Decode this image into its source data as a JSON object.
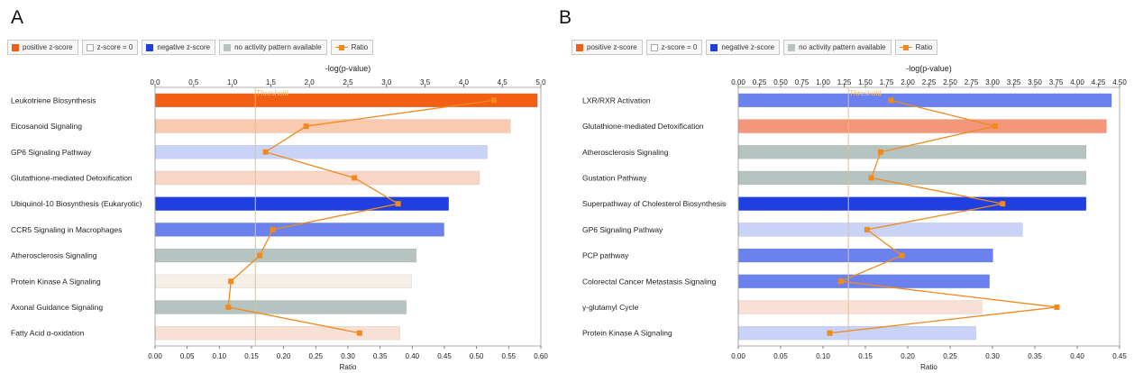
{
  "colors": {
    "positive": "#f25f14",
    "positive_light": "#f9c9b0",
    "zero": "#f5efe8",
    "negative": "#1f3fe0",
    "negative_medium": "#6b82ee",
    "negative_light": "#c9d3f8",
    "no_pattern": "#b5c4c1",
    "ratio": "#f08a1c",
    "threshold": "#f0c070"
  },
  "legend": [
    {
      "label": "positive z-score",
      "color": "#f25f14",
      "kind": "swatch",
      "icon": "square"
    },
    {
      "label": "z-score = 0",
      "color": "#ffffff",
      "kind": "swatch",
      "icon": "square-outline"
    },
    {
      "label": "negative z-score",
      "color": "#1f3fe0",
      "kind": "swatch",
      "icon": "square"
    },
    {
      "label": "no activity pattern available",
      "color": "#b5c4c1",
      "kind": "swatch",
      "icon": "square"
    },
    {
      "label": "Ratio",
      "color": "#f08a1c",
      "kind": "ratio",
      "icon": "line-marker"
    }
  ],
  "chart_data": [
    {
      "panel_label": "A",
      "type": "bar",
      "orientation": "horizontal",
      "top_axis_label": "-log(p-value)",
      "bottom_axis_label": "Ratio",
      "top_ticks": [
        "0.0",
        "0.5",
        "1.0",
        "1.5",
        "2.0",
        "2.5",
        "3.0",
        "3.5",
        "4.0",
        "4.5",
        "5.0"
      ],
      "top_range": [
        0,
        5
      ],
      "bottom_ticks": [
        "0.00",
        "0.05",
        "0.10",
        "0.15",
        "0.20",
        "0.25",
        "0.30",
        "0.35",
        "0.40",
        "0.45",
        "0.50",
        "0.55",
        "0.60"
      ],
      "bottom_range": [
        0,
        0.6
      ],
      "threshold_label": "Threshold",
      "threshold_value": 1.3,
      "categories": [
        "Leukotriene Biosynthesis",
        "Eicosanoid Signaling",
        "GP6 Signaling Pathway",
        "Glutathione-mediated Detoxification",
        "Ubiquinol-10 Biosynthesis (Eukaryotic)",
        "CCR5 Signaling in Macrophages",
        "Atherosclerosis Signaling",
        "Protein Kinase A Signaling",
        "Axonal Guidance Signaling",
        "Fatty Acid α-oxidation"
      ],
      "neg_log_p": [
        4.95,
        4.6,
        4.3,
        4.2,
        3.8,
        3.74,
        3.38,
        3.32,
        3.25,
        3.17
      ],
      "bar_colors": [
        "#f25f14",
        "#f9c9b0",
        "#c9d3f8",
        "#f9d6c6",
        "#1f3fe0",
        "#6b82ee",
        "#b5c4c1",
        "#f5efe8",
        "#b5c4c1",
        "#f9e0d6"
      ],
      "ratio": [
        0.527,
        0.235,
        0.172,
        0.31,
        0.378,
        0.183,
        0.163,
        0.118,
        0.114,
        0.318
      ]
    },
    {
      "panel_label": "B",
      "type": "bar",
      "orientation": "horizontal",
      "top_axis_label": "-log(p-value)",
      "bottom_axis_label": "Ratio",
      "top_ticks": [
        "0.00",
        "0.25",
        "0.50",
        "0.75",
        "1.00",
        "1.25",
        "1.50",
        "1.75",
        "2.00",
        "2.25",
        "2.50",
        "2.75",
        "3.00",
        "3.25",
        "3.50",
        "3.75",
        "4.00",
        "4.25",
        "4.50"
      ],
      "top_range": [
        0,
        4.5
      ],
      "bottom_ticks": [
        "0.00",
        "0.05",
        "0.10",
        "0.15",
        "0.20",
        "0.25",
        "0.30",
        "0.35",
        "0.40",
        "0.45"
      ],
      "bottom_range": [
        0,
        0.45
      ],
      "threshold_label": "Threshold",
      "threshold_value": 1.3,
      "categories": [
        "LXR/RXR Activation",
        "Glutathione-mediated Detoxification",
        "Atherosclerosis Signaling",
        "Gustation Pathway",
        "Superpathway of Cholesterol Biosynthesis",
        "GP6 Signaling Pathway",
        "PCP pathway",
        "Colorectal Cancer Metastasis Signaling",
        "γ-glutamyl Cycle",
        "Protein Kinase A Signaling"
      ],
      "neg_log_p": [
        4.4,
        4.34,
        4.1,
        4.1,
        4.1,
        3.35,
        3.0,
        2.96,
        2.87,
        2.8
      ],
      "bar_colors": [
        "#6b82ee",
        "#f4967a",
        "#b5c4c1",
        "#b5c4c1",
        "#1f3fe0",
        "#c9d3f8",
        "#6b82ee",
        "#6b82ee",
        "#f9e0d6",
        "#c9d3f8"
      ],
      "ratio": [
        0.18,
        0.303,
        0.168,
        0.157,
        0.312,
        0.152,
        0.193,
        0.121,
        0.376,
        0.108
      ]
    }
  ]
}
